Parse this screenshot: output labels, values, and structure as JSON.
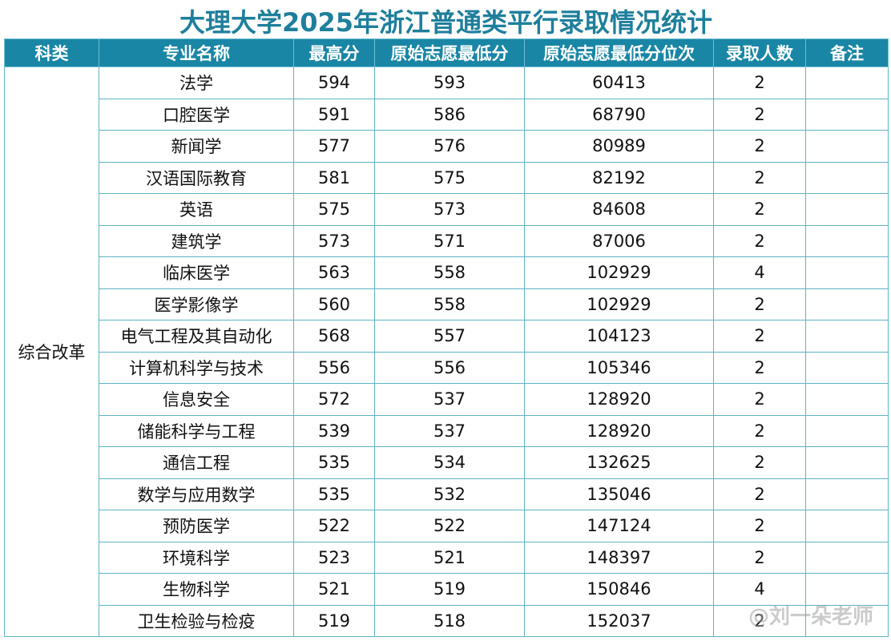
{
  "title": "大理大学2025年浙江普通类平行录取情况统计",
  "headers": [
    "科类",
    "专业名称",
    "最高分",
    "原始志愿最低分",
    "原始志愿最低分位次",
    "录取人数",
    "备注"
  ],
  "category": "综合改革",
  "rows": [
    {
      "major": "法学",
      "max": "594",
      "min": "593",
      "rank": "60413",
      "count": "2",
      "note": ""
    },
    {
      "major": "口腔医学",
      "max": "591",
      "min": "586",
      "rank": "68790",
      "count": "2",
      "note": ""
    },
    {
      "major": "新闻学",
      "max": "577",
      "min": "576",
      "rank": "80989",
      "count": "2",
      "note": ""
    },
    {
      "major": "汉语国际教育",
      "max": "581",
      "min": "575",
      "rank": "82192",
      "count": "2",
      "note": ""
    },
    {
      "major": "英语",
      "max": "575",
      "min": "573",
      "rank": "84608",
      "count": "2",
      "note": ""
    },
    {
      "major": "建筑学",
      "max": "573",
      "min": "571",
      "rank": "87006",
      "count": "2",
      "note": ""
    },
    {
      "major": "临床医学",
      "max": "563",
      "min": "558",
      "rank": "102929",
      "count": "4",
      "note": ""
    },
    {
      "major": "医学影像学",
      "max": "560",
      "min": "558",
      "rank": "102929",
      "count": "2",
      "note": ""
    },
    {
      "major": "电气工程及其自动化",
      "max": "568",
      "min": "557",
      "rank": "104123",
      "count": "2",
      "note": ""
    },
    {
      "major": "计算机科学与技术",
      "max": "556",
      "min": "556",
      "rank": "105346",
      "count": "2",
      "note": ""
    },
    {
      "major": "信息安全",
      "max": "572",
      "min": "537",
      "rank": "128920",
      "count": "2",
      "note": ""
    },
    {
      "major": "储能科学与工程",
      "max": "539",
      "min": "537",
      "rank": "128920",
      "count": "2",
      "note": ""
    },
    {
      "major": "通信工程",
      "max": "535",
      "min": "534",
      "rank": "132625",
      "count": "2",
      "note": ""
    },
    {
      "major": "数学与应用数学",
      "max": "535",
      "min": "532",
      "rank": "135046",
      "count": "2",
      "note": ""
    },
    {
      "major": "预防医学",
      "max": "522",
      "min": "522",
      "rank": "147124",
      "count": "2",
      "note": ""
    },
    {
      "major": "环境科学",
      "max": "523",
      "min": "521",
      "rank": "148397",
      "count": "2",
      "note": ""
    },
    {
      "major": "生物科学",
      "max": "521",
      "min": "519",
      "rank": "150846",
      "count": "4",
      "note": ""
    },
    {
      "major": "卫生检验与检疫",
      "max": "519",
      "min": "518",
      "rank": "152037",
      "count": "2",
      "note": ""
    }
  ],
  "watermark": "@刘一朵老师"
}
